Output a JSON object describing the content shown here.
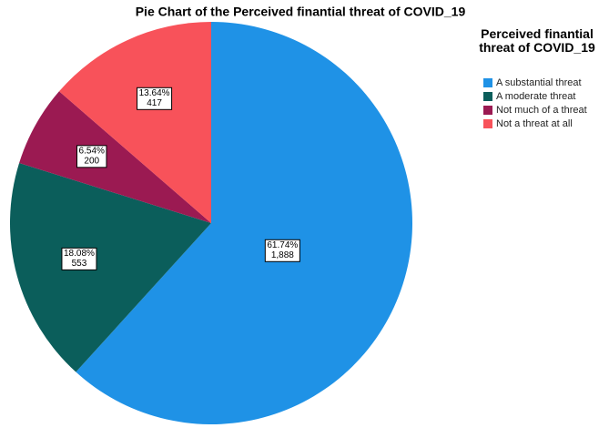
{
  "chart_data": {
    "type": "pie",
    "title": "Pie Chart of the Perceived finantial threat of COVID_19",
    "legend_title": "Perceived finantial threat of COVID_19",
    "categories": [
      "A substantial threat",
      "A moderate threat",
      "Not much of a threat",
      "Not a threat at all"
    ],
    "values": [
      1888,
      553,
      200,
      417
    ],
    "value_labels": [
      "1,888",
      "553",
      "200",
      "417"
    ],
    "percent_labels": [
      "61.74%",
      "18.08%",
      "6.54%",
      "13.64%"
    ],
    "colors": [
      "#1f92e6",
      "#0b5e5b",
      "#9b1a52",
      "#f8525a"
    ],
    "legend": "top-right"
  }
}
